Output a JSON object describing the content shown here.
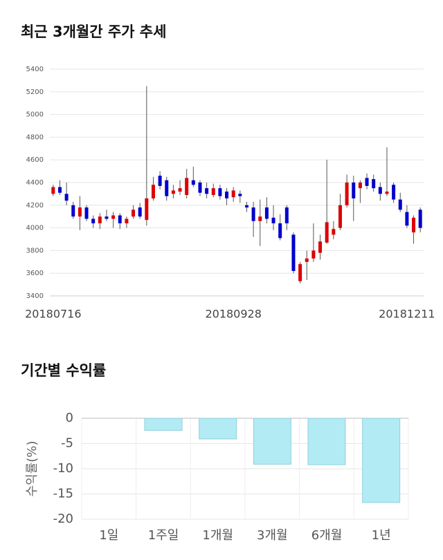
{
  "chart_data": [
    {
      "type": "candlestick",
      "title": "최근 3개월간 주가 추세",
      "categories": [
        "20180716",
        null,
        null,
        null,
        null,
        null,
        null,
        null,
        null,
        null,
        null,
        null,
        null,
        null,
        null,
        null,
        null,
        null,
        null,
        null,
        null,
        null,
        null,
        null,
        null,
        null,
        null,
        "20180928",
        null,
        null,
        null,
        null,
        null,
        null,
        null,
        null,
        null,
        null,
        null,
        null,
        null,
        null,
        null,
        null,
        null,
        null,
        null,
        null,
        null,
        null,
        null,
        null,
        null,
        "20181211",
        null,
        null
      ],
      "open": [
        4300,
        4360,
        4300,
        4200,
        4100,
        4180,
        4080,
        4040,
        4100,
        4080,
        4110,
        4040,
        4100,
        4180,
        4070,
        4260,
        4460,
        4420,
        4300,
        4320,
        4290,
        4420,
        4400,
        4350,
        4290,
        4350,
        4320,
        4270,
        4300,
        4200,
        4180,
        4060,
        4180,
        4090,
        4040,
        4180,
        3940,
        3530,
        3700,
        3730,
        3780,
        3870,
        3940,
        4000,
        4200,
        4400,
        4350,
        4440,
        4430,
        4360,
        4300,
        4380,
        4250,
        4140,
        3960,
        4160
      ],
      "high": [
        4380,
        4420,
        4400,
        4230,
        4280,
        4200,
        4110,
        4130,
        4160,
        4140,
        4130,
        4100,
        4200,
        4220,
        5250,
        4450,
        4500,
        4450,
        4380,
        4420,
        4520,
        4540,
        4420,
        4400,
        4390,
        4380,
        4350,
        4360,
        4330,
        4230,
        4230,
        4250,
        4270,
        4200,
        4120,
        4200,
        3960,
        3700,
        3800,
        4040,
        3940,
        4600,
        4060,
        4300,
        4470,
        4460,
        4420,
        4480,
        4470,
        4400,
        4710,
        4400,
        4310,
        4200,
        4110,
        4180
      ],
      "low": [
        4280,
        4290,
        4200,
        4080,
        3980,
        4060,
        4000,
        3990,
        4060,
        4000,
        3990,
        4000,
        4080,
        4080,
        4020,
        4240,
        4340,
        4240,
        4260,
        4290,
        4260,
        4360,
        4280,
        4260,
        4270,
        4250,
        4200,
        4230,
        4220,
        4140,
        3920,
        3840,
        4040,
        3980,
        3890,
        3980,
        3600,
        3510,
        3540,
        3700,
        3720,
        3860,
        3900,
        3980,
        4180,
        4060,
        4220,
        4340,
        4320,
        4240,
        4280,
        4220,
        4140,
        4000,
        3860,
        3960
      ],
      "close": [
        4360,
        4310,
        4240,
        4100,
        4180,
        4080,
        4040,
        4100,
        4080,
        4110,
        4040,
        4080,
        4160,
        4100,
        4260,
        4380,
        4370,
        4280,
        4330,
        4350,
        4440,
        4380,
        4310,
        4300,
        4350,
        4280,
        4260,
        4330,
        4280,
        4180,
        4060,
        4100,
        4080,
        4040,
        3910,
        4040,
        3620,
        3680,
        3730,
        3800,
        3880,
        4050,
        3990,
        4200,
        4400,
        4260,
        4400,
        4370,
        4350,
        4300,
        4320,
        4250,
        4160,
        4020,
        4090,
        4000
      ],
      "up_color": "#dd0000",
      "down_color": "#0000cc",
      "ylim": [
        3400,
        5400
      ],
      "yticks": [
        3400,
        3600,
        3800,
        4000,
        4200,
        4400,
        4600,
        4800,
        5000,
        5200,
        5400
      ],
      "grid": true
    },
    {
      "type": "bar",
      "title": "기간별 수익률",
      "ylabel": "수익률(%)",
      "categories": [
        "1일",
        "1주일",
        "1개월",
        "3개월",
        "6개월",
        "1년"
      ],
      "values": [
        0,
        -2.4,
        -4.1,
        -9.1,
        -9.2,
        -16.7
      ],
      "color": "#b3ebf4",
      "edge_color": "#8fcfdb",
      "ylim": [
        -20,
        0
      ],
      "yticks": [
        0,
        -5,
        -10,
        -15,
        -20
      ],
      "grid": true
    }
  ]
}
